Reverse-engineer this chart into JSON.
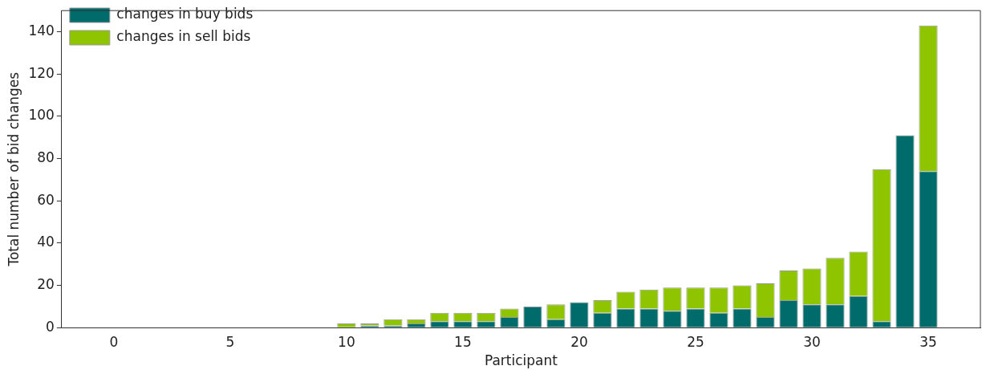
{
  "chart_data": {
    "type": "bar",
    "xlabel": "Participant",
    "ylabel": "Total number of bid changes",
    "x": [
      0,
      1,
      2,
      3,
      4,
      5,
      6,
      7,
      8,
      9,
      10,
      11,
      12,
      13,
      14,
      15,
      16,
      17,
      18,
      19,
      20,
      21,
      22,
      23,
      24,
      25,
      26,
      27,
      28,
      29,
      30,
      31,
      32,
      33,
      34,
      35
    ],
    "series": [
      {
        "name": "changes in buy bids",
        "color": "#006b6b",
        "values": [
          0,
          0,
          0,
          0,
          0,
          0,
          0,
          0,
          0,
          0,
          0,
          1,
          1,
          2,
          3,
          3,
          3,
          5,
          10,
          4,
          12,
          7,
          9,
          9,
          8,
          9,
          7,
          9,
          5,
          13,
          11,
          11,
          15,
          3,
          91,
          74
        ]
      },
      {
        "name": "changes in sell bids",
        "color": "#8fc400",
        "values": [
          0,
          0,
          0,
          0,
          0,
          0,
          0,
          0,
          0,
          0,
          2,
          1,
          3,
          2,
          4,
          4,
          4,
          4,
          0,
          7,
          0,
          6,
          8,
          9,
          11,
          10,
          12,
          11,
          16,
          14,
          17,
          22,
          21,
          72,
          0,
          69
        ]
      }
    ],
    "stacked": true,
    "xlim": [
      -2.24,
      37.24
    ],
    "xticks": [
      0,
      5,
      10,
      15,
      20,
      25,
      30,
      35
    ],
    "ylim": [
      0,
      150
    ],
    "yticks": [
      0,
      20,
      40,
      60,
      80,
      100,
      120,
      140
    ],
    "grid": false,
    "legend": "top left"
  }
}
